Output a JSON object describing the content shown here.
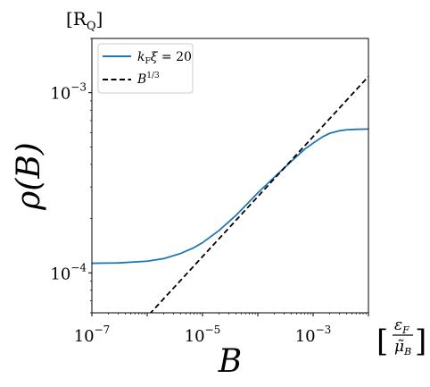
{
  "chart_data": {
    "type": "line",
    "xscale": "log",
    "yscale": "log",
    "xlim": [
      1e-07,
      0.01
    ],
    "ylim": [
      6e-05,
      0.002
    ],
    "xlabel": "B",
    "ylabel": "ρ(B)",
    "x_unit": {
      "numerator": "ε",
      "numerator_sub": "F",
      "denominator": "μ̃",
      "denominator_sub": "B"
    },
    "y_unit": {
      "text": "[R",
      "sub": "Q",
      "close": "]"
    },
    "x_ticks": [
      {
        "base": "10",
        "exp": "−7",
        "value": 1e-07
      },
      {
        "base": "10",
        "exp": "−5",
        "value": 1e-05
      },
      {
        "base": "10",
        "exp": "−3",
        "value": 0.001
      }
    ],
    "y_ticks": [
      {
        "base": "10",
        "exp": "−4",
        "value": 0.0001
      },
      {
        "base": "10",
        "exp": "−3",
        "value": 0.001
      }
    ],
    "legend_position": "top-left",
    "series": [
      {
        "name": "k_F ξ = 20",
        "legend_parts": {
          "k": "k",
          "k_sub": "F",
          "xi": "ξ",
          "rest": " = 20"
        },
        "color": "#1f77b4",
        "dash": "solid",
        "x": [
          1e-07,
          3e-07,
          1e-06,
          2e-06,
          4e-06,
          7e-06,
          1e-05,
          2e-05,
          4e-05,
          7e-05,
          0.0001,
          0.0002,
          0.0004,
          0.0007,
          0.001,
          0.0015,
          0.002,
          0.003,
          0.004,
          0.006,
          0.01
        ],
        "y": [
          0.000113,
          0.0001135,
          0.000116,
          0.00012,
          0.000128,
          0.000138,
          0.000147,
          0.000172,
          0.000208,
          0.000248,
          0.000278,
          0.00034,
          0.000415,
          0.000485,
          0.000525,
          0.00057,
          0.000595,
          0.000615,
          0.000622,
          0.000626,
          0.000628
        ]
      },
      {
        "name": "B^1/3",
        "legend_parts": {
          "base": "B",
          "exp": "1/3"
        },
        "color": "#000000",
        "dash": "dashed",
        "x": [
          1.1e-06,
          1e-05,
          0.0001,
          0.001,
          0.01
        ],
        "y": [
          5.9e-05,
          0.000123,
          0.000265,
          0.00057,
          0.00123
        ]
      }
    ]
  }
}
